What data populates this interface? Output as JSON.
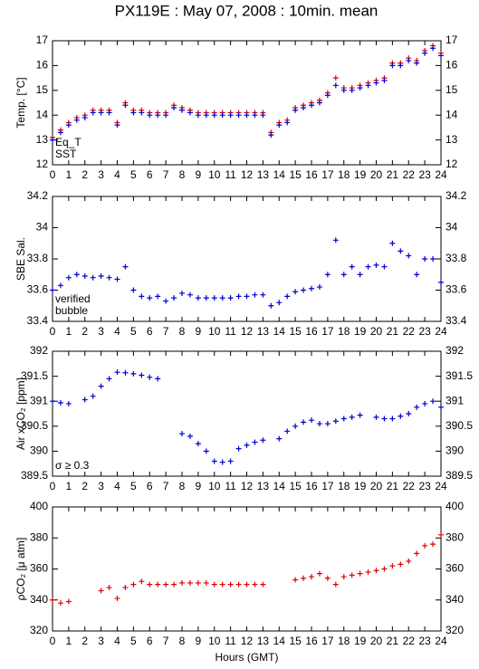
{
  "title": "PX119E : May 07, 2008 : 10min. mean",
  "chart_data": [
    {
      "type": "scatter",
      "ylabel": "Temp. [°C]",
      "x": [
        0,
        0.5,
        1,
        1.5,
        2,
        2.5,
        3,
        3.5,
        4,
        4.5,
        5,
        5.5,
        6,
        6.5,
        7,
        7.5,
        8,
        8.5,
        9,
        9.5,
        10,
        10.5,
        11,
        11.5,
        12,
        12.5,
        13,
        13.5,
        14,
        14.5,
        15,
        15.5,
        16,
        16.5,
        17,
        17.5,
        18,
        18.5,
        19,
        19.5,
        20,
        20.5,
        21,
        21.5,
        22,
        22.5,
        23,
        23.5,
        24
      ],
      "xlim": [
        0,
        24
      ],
      "xticks": [
        0,
        1,
        2,
        3,
        4,
        5,
        6,
        7,
        8,
        9,
        10,
        11,
        12,
        13,
        14,
        15,
        16,
        17,
        18,
        19,
        20,
        21,
        22,
        23,
        24
      ],
      "ylim": [
        12,
        17
      ],
      "yticks": [
        12,
        13,
        14,
        15,
        16,
        17
      ],
      "legend": "lower left",
      "series": [
        {
          "name": "Eq_T",
          "color": "#e00000",
          "values": [
            13.1,
            13.4,
            13.7,
            13.9,
            14.0,
            14.2,
            14.2,
            14.2,
            13.7,
            14.5,
            14.2,
            14.2,
            14.1,
            14.1,
            14.1,
            14.4,
            14.3,
            14.2,
            14.1,
            14.1,
            14.1,
            14.1,
            14.1,
            14.1,
            14.1,
            14.1,
            14.1,
            13.3,
            13.7,
            13.8,
            14.3,
            14.4,
            14.5,
            14.6,
            14.9,
            15.5,
            15.1,
            15.1,
            15.2,
            15.3,
            15.4,
            15.5,
            16.1,
            16.1,
            16.3,
            16.2,
            16.6,
            16.8,
            16.5
          ]
        },
        {
          "name": "SST",
          "color": "#0000d0",
          "values": [
            13.0,
            13.3,
            13.6,
            13.8,
            13.9,
            14.1,
            14.1,
            14.1,
            13.6,
            14.4,
            14.1,
            14.1,
            14.0,
            14.0,
            14.0,
            14.3,
            14.2,
            14.1,
            14.0,
            14.0,
            14.0,
            14.0,
            14.0,
            14.0,
            14.0,
            14.0,
            14.0,
            13.2,
            13.6,
            13.7,
            14.2,
            14.3,
            14.4,
            14.5,
            14.8,
            15.2,
            15.0,
            15.0,
            15.1,
            15.2,
            15.3,
            15.4,
            16.0,
            16.0,
            16.2,
            16.1,
            16.5,
            16.7,
            16.4
          ]
        }
      ]
    },
    {
      "type": "scatter",
      "ylabel": "SBE Sal.",
      "x": [
        0,
        0.5,
        1,
        1.5,
        2,
        2.5,
        3,
        3.5,
        4,
        4.5,
        5,
        5.5,
        6,
        6.5,
        7,
        7.5,
        8,
        8.5,
        9,
        9.5,
        10,
        10.5,
        11,
        11.5,
        12,
        12.5,
        13,
        13.5,
        14,
        14.5,
        15,
        15.5,
        16,
        16.5,
        17,
        17.5,
        18,
        18.5,
        19,
        19.5,
        20,
        20.5,
        21,
        21.5,
        22,
        22.5,
        23,
        23.5,
        24
      ],
      "xlim": [
        0,
        24
      ],
      "xticks": [
        0,
        1,
        2,
        3,
        4,
        5,
        6,
        7,
        8,
        9,
        10,
        11,
        12,
        13,
        14,
        15,
        16,
        17,
        18,
        19,
        20,
        21,
        22,
        23,
        24
      ],
      "ylim": [
        33.4,
        34.2
      ],
      "yticks": [
        33.4,
        33.6,
        33.8,
        34,
        34.2
      ],
      "annotations": [
        {
          "text": "verified",
          "color": "#0000c0"
        },
        {
          "text": "bubble",
          "color": "#c000c0"
        }
      ],
      "series": [
        {
          "color": "#0000d0",
          "values": [
            33.6,
            33.63,
            33.68,
            33.7,
            33.69,
            33.68,
            33.69,
            33.68,
            33.67,
            33.75,
            33.6,
            33.56,
            33.55,
            33.56,
            33.53,
            33.55,
            33.58,
            33.57,
            33.55,
            33.55,
            33.55,
            33.55,
            33.55,
            33.56,
            33.56,
            33.57,
            33.57,
            33.5,
            33.52,
            33.56,
            33.59,
            33.6,
            33.61,
            33.62,
            33.7,
            33.92,
            33.7,
            33.75,
            33.7,
            33.75,
            33.76,
            33.75,
            33.9,
            33.85,
            33.82,
            33.7,
            33.8,
            33.8,
            33.65
          ]
        }
      ]
    },
    {
      "type": "scatter",
      "ylabel": "Air xCO₂ [ppm]",
      "x": [
        0,
        0.5,
        1,
        1.5,
        2,
        2.5,
        3,
        3.5,
        4,
        4.5,
        5,
        5.5,
        6,
        6.5,
        7,
        7.5,
        8,
        8.5,
        9,
        9.5,
        10,
        10.5,
        11,
        11.5,
        12,
        12.5,
        13,
        13.5,
        14,
        14.5,
        15,
        15.5,
        16,
        16.5,
        17,
        17.5,
        18,
        18.5,
        19,
        19.5,
        20,
        20.5,
        21,
        21.5,
        22,
        22.5,
        23,
        23.5,
        24
      ],
      "xlim": [
        0,
        24
      ],
      "xticks": [
        0,
        1,
        2,
        3,
        4,
        5,
        6,
        7,
        8,
        9,
        10,
        11,
        12,
        13,
        14,
        15,
        16,
        17,
        18,
        19,
        20,
        21,
        22,
        23,
        24
      ],
      "ylim": [
        389.5,
        392
      ],
      "yticks": [
        389.5,
        390,
        390.5,
        391,
        391.5,
        392
      ],
      "annotations": [
        {
          "text": "σ ≥ 0.3",
          "color": "#c000c0"
        }
      ],
      "series": [
        {
          "color": "#0000d0",
          "values": [
            391.0,
            390.97,
            390.95,
            null,
            391.03,
            391.1,
            391.3,
            391.45,
            391.58,
            391.57,
            391.55,
            391.52,
            391.48,
            391.45,
            null,
            null,
            390.35,
            390.3,
            390.15,
            390.0,
            389.8,
            389.78,
            389.8,
            390.05,
            390.12,
            390.18,
            390.22,
            null,
            390.25,
            390.4,
            390.5,
            390.58,
            390.62,
            390.55,
            390.55,
            390.6,
            390.65,
            390.68,
            390.72,
            null,
            390.68,
            390.65,
            390.65,
            390.7,
            390.75,
            390.88,
            390.95,
            391.0,
            390.88
          ]
        }
      ]
    },
    {
      "type": "scatter",
      "ylabel": "ρCO₂ [μ atm]",
      "xlabel": "Hours (GMT)",
      "x": [
        0,
        0.5,
        1,
        1.5,
        2,
        2.5,
        3,
        3.5,
        4,
        4.5,
        5,
        5.5,
        6,
        6.5,
        7,
        7.5,
        8,
        8.5,
        9,
        9.5,
        10,
        10.5,
        11,
        11.5,
        12,
        12.5,
        13,
        13.5,
        14,
        14.5,
        15,
        15.5,
        16,
        16.5,
        17,
        17.5,
        18,
        18.5,
        19,
        19.5,
        20,
        20.5,
        21,
        21.5,
        22,
        22.5,
        23,
        23.5,
        24
      ],
      "xlim": [
        0,
        24
      ],
      "xticks": [
        0,
        1,
        2,
        3,
        4,
        5,
        6,
        7,
        8,
        9,
        10,
        11,
        12,
        13,
        14,
        15,
        16,
        17,
        18,
        19,
        20,
        21,
        22,
        23,
        24
      ],
      "ylim": [
        320,
        400
      ],
      "yticks": [
        320,
        340,
        360,
        380,
        400
      ],
      "series": [
        {
          "color": "#e00000",
          "values": [
            340,
            338,
            339,
            null,
            null,
            null,
            346,
            348,
            341,
            348,
            350,
            352,
            350,
            350,
            350,
            350,
            351,
            351,
            351,
            351,
            350,
            350,
            350,
            350,
            350,
            350,
            350,
            null,
            null,
            null,
            353,
            354,
            355,
            357,
            354,
            350,
            355,
            356,
            357,
            358,
            359,
            360,
            362,
            363,
            365,
            370,
            375,
            376,
            382
          ]
        }
      ]
    }
  ]
}
